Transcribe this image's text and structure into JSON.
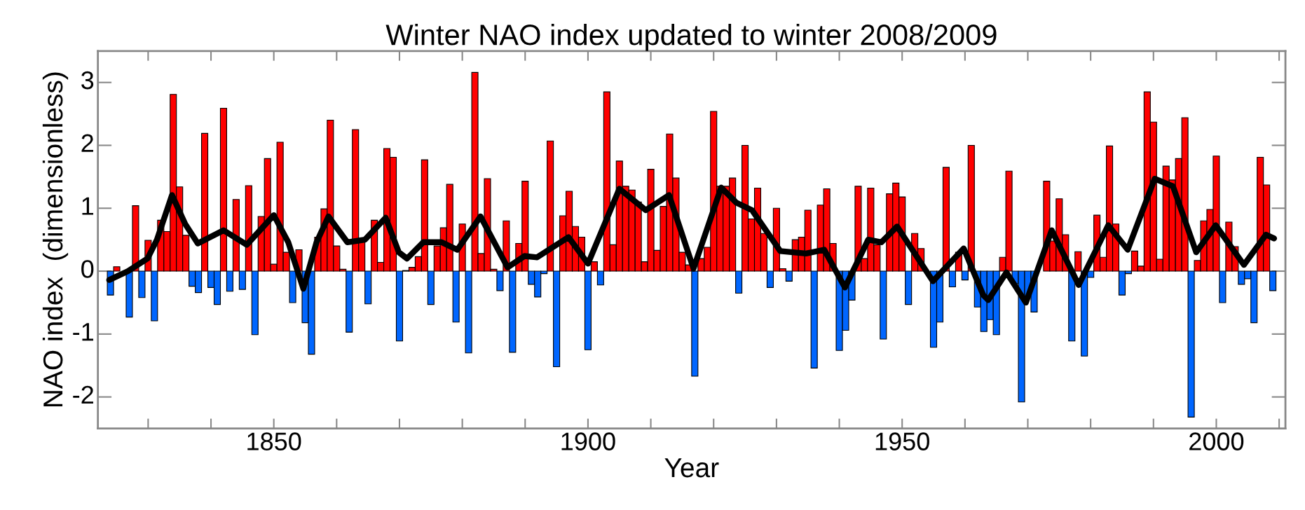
{
  "chart_data": {
    "type": "bar",
    "title": "Winter NAO index updated to winter 2008/2009",
    "xlabel": "Year",
    "ylabel": "NAO index  (dimensionless)",
    "x": [
      1824,
      1825,
      1826,
      1827,
      1828,
      1829,
      1830,
      1831,
      1832,
      1833,
      1834,
      1835,
      1836,
      1837,
      1838,
      1839,
      1840,
      1841,
      1842,
      1843,
      1844,
      1845,
      1846,
      1847,
      1848,
      1849,
      1850,
      1851,
      1852,
      1853,
      1854,
      1855,
      1856,
      1857,
      1858,
      1859,
      1860,
      1861,
      1862,
      1863,
      1864,
      1865,
      1866,
      1867,
      1868,
      1869,
      1870,
      1871,
      1872,
      1873,
      1874,
      1875,
      1876,
      1877,
      1878,
      1879,
      1880,
      1881,
      1882,
      1883,
      1884,
      1885,
      1886,
      1887,
      1888,
      1889,
      1890,
      1891,
      1892,
      1893,
      1894,
      1895,
      1896,
      1897,
      1898,
      1899,
      1900,
      1901,
      1902,
      1903,
      1904,
      1905,
      1906,
      1907,
      1908,
      1909,
      1910,
      1911,
      1912,
      1913,
      1914,
      1915,
      1916,
      1917,
      1918,
      1919,
      1920,
      1921,
      1922,
      1923,
      1924,
      1925,
      1926,
      1927,
      1928,
      1929,
      1930,
      1931,
      1932,
      1933,
      1934,
      1935,
      1936,
      1937,
      1938,
      1939,
      1940,
      1941,
      1942,
      1943,
      1944,
      1945,
      1946,
      1947,
      1948,
      1949,
      1950,
      1951,
      1952,
      1953,
      1954,
      1955,
      1956,
      1957,
      1958,
      1959,
      1960,
      1961,
      1962,
      1963,
      1964,
      1965,
      1966,
      1967,
      1968,
      1969,
      1970,
      1971,
      1972,
      1973,
      1974,
      1975,
      1976,
      1977,
      1978,
      1979,
      1980,
      1981,
      1982,
      1983,
      1984,
      1985,
      1986,
      1987,
      1988,
      1989,
      1990,
      1991,
      1992,
      1993,
      1994,
      1995,
      1996,
      1997,
      1998,
      1999,
      2000,
      2001,
      2002,
      2003,
      2004,
      2005,
      2006,
      2007,
      2008,
      2009
    ],
    "series": [
      {
        "color": "#ff0000",
        "values": [
          null,
          0.07,
          null,
          null,
          1.04,
          null,
          0.49,
          null,
          0.81,
          0.63,
          2.81,
          1.34,
          0.57,
          null,
          null,
          2.19,
          null,
          null,
          2.59,
          null,
          1.14,
          null,
          1.36,
          null,
          0.87,
          1.79,
          0.11,
          2.05,
          0.3,
          null,
          0.34,
          null,
          null,
          0.54,
          0.99,
          2.4,
          0.4,
          0.03,
          null,
          2.25,
          0.5,
          null,
          0.81,
          0.14,
          1.95,
          1.81,
          null,
          0.01,
          0.06,
          0.23,
          1.77,
          null,
          0.4,
          0.69,
          1.38,
          null,
          0.75,
          null,
          3.16,
          0.28,
          1.47,
          0.03,
          null,
          0.8,
          null,
          0.44,
          1.43,
          null,
          null,
          null,
          2.07,
          null,
          0.88,
          1.27,
          0.71,
          0.54,
          null,
          0.15,
          null,
          2.85,
          0.42,
          1.75,
          1.35,
          1.29,
          1.1,
          0.15,
          1.62,
          0.33,
          1.03,
          2.18,
          1.48,
          0.3,
          0.1,
          null,
          0.2,
          0.38,
          2.54,
          1.35,
          1.35,
          1.48,
          null,
          2.0,
          0.83,
          1.32,
          0.6,
          null,
          1.0,
          0.04,
          null,
          0.5,
          0.54,
          0.97,
          null,
          1.05,
          1.31,
          0.44,
          null,
          null,
          null,
          1.35,
          0.2,
          1.32,
          0.42,
          null,
          1.23,
          1.4,
          1.18,
          null,
          0.6,
          0.36,
          null,
          null,
          null,
          1.65,
          null,
          0.3,
          null,
          2.0,
          null,
          null,
          null,
          null,
          0.22,
          1.59,
          null,
          null,
          null,
          null,
          null,
          1.43,
          0.48,
          1.15,
          0.58,
          null,
          0.31,
          null,
          null,
          0.89,
          0.22,
          1.99,
          0.75,
          null,
          null,
          0.32,
          0.08,
          2.85,
          2.37,
          0.19,
          1.67,
          1.45,
          1.79,
          2.44,
          null,
          0.17,
          0.8,
          0.98,
          1.83,
          null,
          0.78,
          0.39,
          null,
          null,
          null,
          1.81,
          1.37,
          null
        ]
      },
      {
        "color": "#0066ff",
        "values": [
          -0.38,
          null,
          null,
          -0.73,
          null,
          -0.42,
          null,
          -0.79,
          null,
          null,
          null,
          null,
          null,
          -0.24,
          -0.34,
          null,
          -0.26,
          -0.53,
          null,
          -0.32,
          null,
          -0.29,
          null,
          -1.01,
          null,
          null,
          null,
          null,
          null,
          -0.5,
          null,
          -0.82,
          -1.32,
          null,
          null,
          null,
          null,
          null,
          -0.97,
          null,
          null,
          -0.52,
          null,
          null,
          null,
          null,
          -1.11,
          null,
          null,
          null,
          null,
          -0.53,
          null,
          null,
          null,
          -0.81,
          null,
          -1.3,
          null,
          null,
          null,
          null,
          -0.31,
          null,
          -1.29,
          null,
          null,
          -0.21,
          -0.41,
          -0.04,
          null,
          -1.52,
          null,
          null,
          null,
          null,
          -1.25,
          null,
          -0.22,
          null,
          null,
          null,
          null,
          null,
          null,
          null,
          null,
          null,
          null,
          null,
          null,
          null,
          null,
          -1.67,
          null,
          null,
          null,
          null,
          null,
          null,
          -0.35,
          null,
          null,
          null,
          null,
          -0.26,
          null,
          null,
          -0.16,
          null,
          null,
          null,
          -1.54,
          null,
          null,
          null,
          -1.26,
          -0.94,
          -0.46,
          null,
          null,
          null,
          null,
          -1.08,
          null,
          null,
          null,
          -0.53,
          null,
          null,
          null,
          -1.21,
          -0.81,
          null,
          -0.25,
          null,
          -0.14,
          null,
          -0.57,
          -0.96,
          -0.77,
          -1.01,
          null,
          null,
          -0.2,
          -2.08,
          -0.4,
          -0.65,
          null,
          null,
          null,
          null,
          null,
          -1.11,
          null,
          -1.35,
          -0.1,
          null,
          null,
          null,
          null,
          -0.38,
          -0.04,
          null,
          null,
          null,
          null,
          null,
          null,
          null,
          null,
          null,
          -2.32,
          null,
          null,
          null,
          null,
          -0.5,
          null,
          null,
          -0.21,
          -0.12,
          -0.82,
          null,
          null,
          -0.31
        ]
      },
      {
        "type": "line",
        "color": "#000000",
        "x": [
          1823.8,
          1826.8,
          1829.9,
          1831.4,
          1833.8,
          1835.9,
          1837.9,
          1842,
          1845.7,
          1850,
          1852.3,
          1854.7,
          1856.8,
          1858.7,
          1861.7,
          1864.5,
          1867.8,
          1869.9,
          1871.2,
          1873.8,
          1876.7,
          1879.2,
          1882.9,
          1887.2,
          1889.9,
          1891.9,
          1896.9,
          1900,
          1905,
          1909.2,
          1912.9,
          1916.8,
          1921.2,
          1923.6,
          1926.1,
          1930.6,
          1934.7,
          1937.6,
          1940.9,
          1944.6,
          1946.7,
          1949.2,
          1954.9,
          1959.8,
          1962.9,
          1963.7,
          1966.6,
          1969.7,
          1973.8,
          1978.1,
          1982.8,
          1985.9,
          1990.2,
          1993.1,
          1996.8,
          1999.9,
          2004.4,
          2007.9,
          2009.2
        ],
        "values": [
          -0.14,
          0.0,
          0.2,
          0.5,
          1.21,
          0.75,
          0.44,
          0.65,
          0.42,
          0.89,
          0.46,
          -0.28,
          0.46,
          0.87,
          0.46,
          0.5,
          0.85,
          0.3,
          0.2,
          0.46,
          0.46,
          0.34,
          0.87,
          0.06,
          0.24,
          0.22,
          0.54,
          0.12,
          1.31,
          0.97,
          1.21,
          0.04,
          1.33,
          1.09,
          0.97,
          0.32,
          0.28,
          0.34,
          -0.26,
          0.5,
          0.46,
          0.71,
          -0.16,
          0.36,
          -0.38,
          -0.46,
          -0.02,
          -0.5,
          0.65,
          -0.22,
          0.73,
          0.34,
          1.47,
          1.35,
          0.3,
          0.73,
          0.1,
          0.58,
          0.52
        ]
      }
    ],
    "xlim": [
      1822,
      2011
    ],
    "xticks": [
      {
        "value": 1830,
        "label": null
      },
      {
        "value": 1840,
        "label": null
      },
      1850,
      {
        "value": 1860,
        "label": null
      },
      {
        "value": 1870,
        "label": null
      },
      {
        "value": 1880,
        "label": null
      },
      {
        "value": 1890,
        "label": null
      },
      1900,
      {
        "value": 1910,
        "label": null
      },
      {
        "value": 1920,
        "label": null
      },
      {
        "value": 1930,
        "label": null
      },
      {
        "value": 1940,
        "label": null
      },
      1950,
      {
        "value": 1960,
        "label": null
      },
      {
        "value": 1970,
        "label": null
      },
      {
        "value": 1980,
        "label": null
      },
      {
        "value": 1990,
        "label": null
      },
      2000,
      {
        "value": 2010,
        "label": null
      }
    ],
    "ylim": [
      -2.5,
      3.5
    ],
    "yticks": [
      -2,
      -1,
      0,
      1,
      2,
      3
    ],
    "grid": false,
    "legend": false
  }
}
